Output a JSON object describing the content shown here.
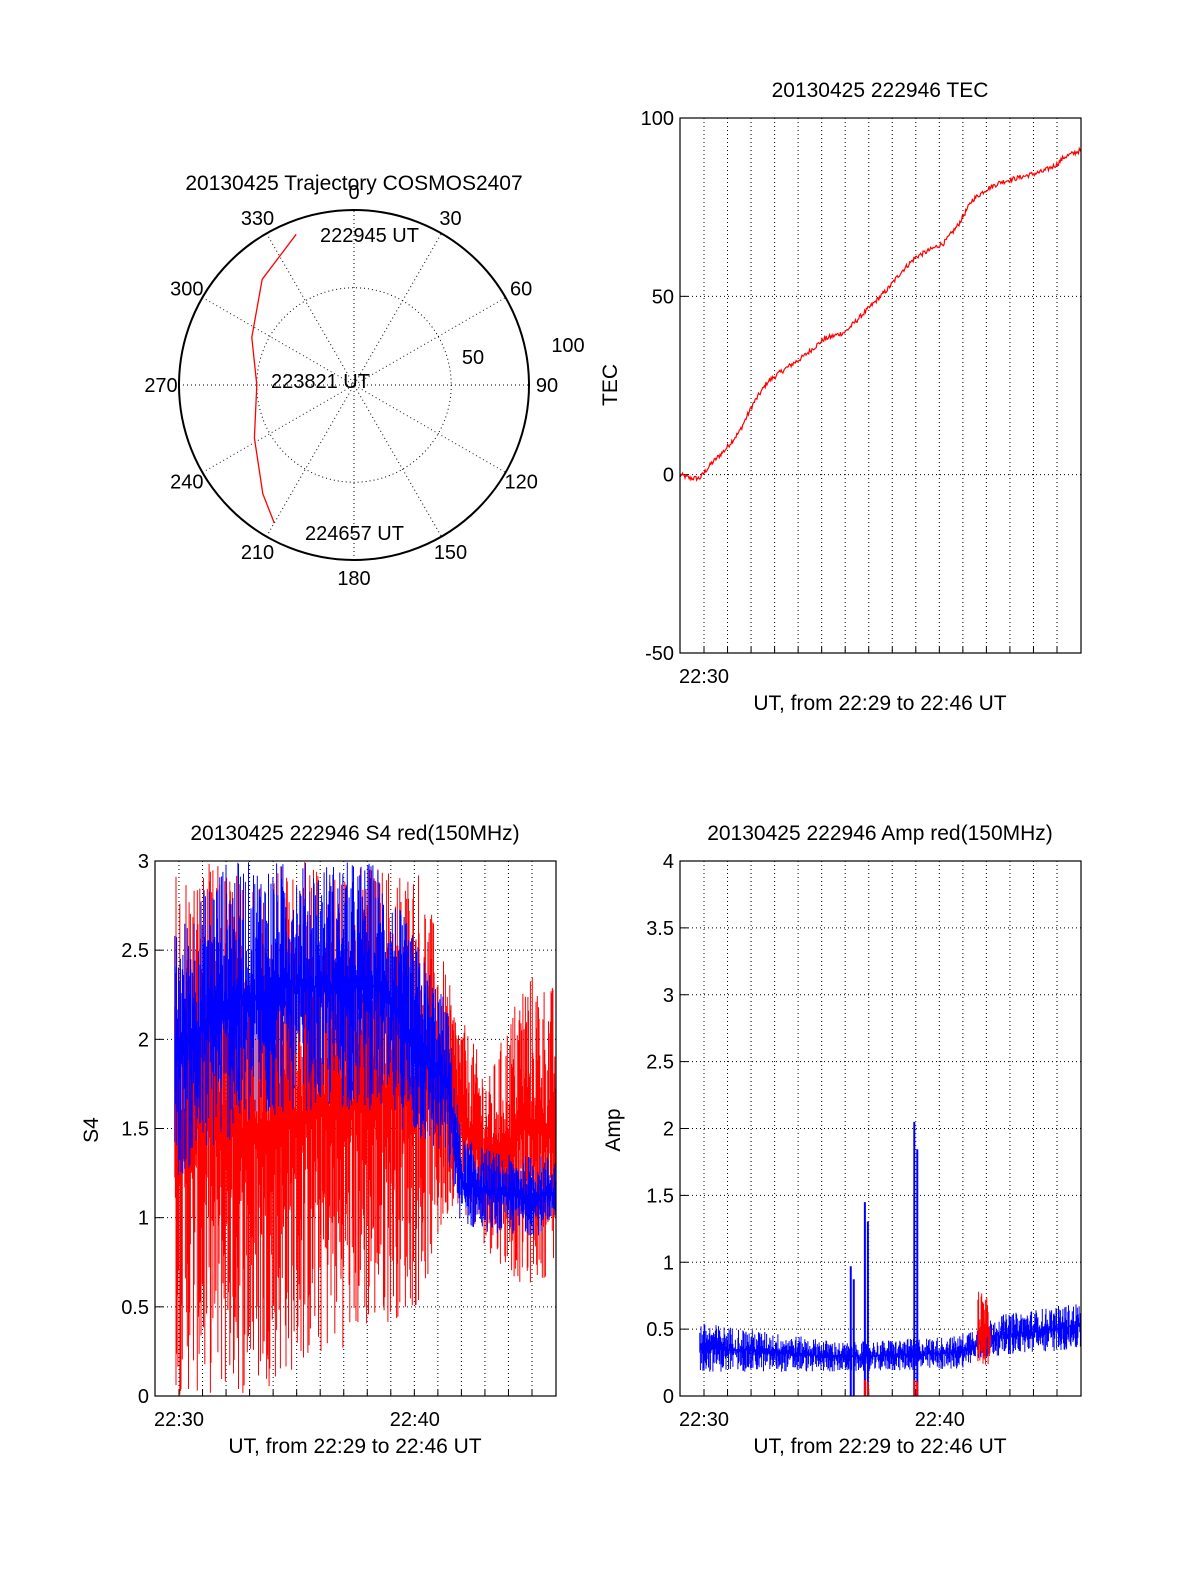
{
  "colors": {
    "red": "#ff0000",
    "blue": "#0000ff",
    "grid": "#000000",
    "background": "#ffffff"
  },
  "chart_data": [
    {
      "id": "trajectory",
      "type": "polar",
      "title": "20130425 Trajectory COSMOS2407",
      "angle_labels": [
        "0",
        "30",
        "60",
        "90",
        "120",
        "150",
        "180",
        "210",
        "240",
        "270",
        "300",
        "330"
      ],
      "radius_labels": [
        "50",
        "100"
      ],
      "grid": true,
      "track": {
        "color": "red",
        "points": [
          {
            "azimuth": 339,
            "zenith": 83
          },
          {
            "azimuth": 319,
            "zenith": 72
          },
          {
            "azimuth": 295,
            "zenith": 58
          },
          {
            "azimuth": 270,
            "zenith": 50
          },
          {
            "azimuth": 242,
            "zenith": 58
          },
          {
            "azimuth": 220,
            "zenith": 73
          },
          {
            "azimuth": 210,
            "zenith": 82
          }
        ],
        "labels": [
          {
            "text": "222945 UT",
            "azimuth": 339,
            "zenith": 83
          },
          {
            "text": "223821 UT",
            "azimuth": 270,
            "zenith": 50
          },
          {
            "text": "224657 UT",
            "azimuth": 210,
            "zenith": 82
          }
        ]
      }
    },
    {
      "id": "tec",
      "type": "line",
      "title": "20130425 222946 TEC",
      "xlabel": "UT, from 22:29 to 22:46 UT",
      "ylabel": "TEC",
      "xlim": [
        22.483,
        22.767
      ],
      "ylim": [
        -50,
        100
      ],
      "yticks": [
        "100",
        "50",
        "0",
        "-50"
      ],
      "xtick_labels": [
        {
          "t": 22.5,
          "label": "22:30"
        }
      ],
      "grid": true,
      "series": [
        {
          "color": "red",
          "x": [
            22.483,
            22.49,
            22.497,
            22.505,
            22.515,
            22.525,
            22.535,
            22.545,
            22.555,
            22.57,
            22.585,
            22.6,
            22.61,
            22.62,
            22.63,
            22.64,
            22.65,
            22.66,
            22.67,
            22.68,
            22.69,
            22.7,
            22.71,
            22.72,
            22.73,
            22.74,
            22.75,
            22.755,
            22.767
          ],
          "y": [
            0,
            -1,
            -1,
            3,
            7,
            12,
            20,
            26,
            29,
            33,
            38,
            40,
            44,
            48,
            52,
            57,
            61,
            63,
            65,
            70,
            77,
            80,
            82,
            83,
            84,
            85,
            87,
            89,
            91
          ]
        }
      ]
    },
    {
      "id": "s4",
      "type": "line",
      "title": "20130425 222946 S4 red(150MHz)",
      "xlabel": "UT, from 22:29 to 22:46 UT",
      "ylabel": "S4",
      "xlim": [
        22.483,
        22.767
      ],
      "ylim": [
        0,
        3
      ],
      "yticks": [
        "3",
        "2.5",
        "2",
        "1.5",
        "1",
        "0.5",
        "0"
      ],
      "xtick_labels": [
        {
          "t": 22.5,
          "label": "22:30"
        },
        {
          "t": 22.667,
          "label": "22:40"
        }
      ],
      "grid": true,
      "series": [
        {
          "color": "red",
          "profile": [
            {
              "t": 22.497,
              "lo": 0,
              "hi": 3
            },
            {
              "t": 22.55,
              "lo": 0,
              "hi": 3
            },
            {
              "t": 22.6,
              "lo": 0.2,
              "hi": 3
            },
            {
              "t": 22.67,
              "lo": 0.5,
              "hi": 3
            },
            {
              "t": 22.695,
              "lo": 1.1,
              "hi": 2.2
            },
            {
              "t": 22.72,
              "lo": 0.8,
              "hi": 1.8
            },
            {
              "t": 22.745,
              "lo": 0.6,
              "hi": 2.4
            },
            {
              "t": 22.767,
              "lo": 0.7,
              "hi": 2.3
            }
          ]
        },
        {
          "color": "blue",
          "profile": [
            {
              "t": 22.497,
              "lo": 1.2,
              "hi": 2.6
            },
            {
              "t": 22.53,
              "lo": 1.4,
              "hi": 3
            },
            {
              "t": 22.58,
              "lo": 1.6,
              "hi": 3
            },
            {
              "t": 22.64,
              "lo": 1.6,
              "hi": 3
            },
            {
              "t": 22.69,
              "lo": 1.3,
              "hi": 2.2
            },
            {
              "t": 22.7,
              "lo": 0.95,
              "hi": 1.45
            },
            {
              "t": 22.73,
              "lo": 0.9,
              "hi": 1.35
            },
            {
              "t": 22.767,
              "lo": 0.9,
              "hi": 1.35
            }
          ]
        }
      ]
    },
    {
      "id": "amp",
      "type": "line",
      "title": "20130425 222946 Amp red(150MHz)",
      "xlabel": "UT, from 22:29 to 22:46 UT",
      "ylabel": "Amp",
      "xlim": [
        22.483,
        22.767
      ],
      "ylim": [
        0,
        4
      ],
      "yticks": [
        "4",
        "3.5",
        "3",
        "2.5",
        "2",
        "1.5",
        "1",
        "0.5",
        "0"
      ],
      "xtick_labels": [
        {
          "t": 22.5,
          "label": "22:30"
        },
        {
          "t": 22.667,
          "label": "22:40"
        }
      ],
      "grid": true,
      "series": [
        {
          "color": "blue",
          "profile": [
            {
              "t": 22.497,
              "lo": 0.18,
              "hi": 0.55
            },
            {
              "t": 22.6,
              "lo": 0.18,
              "hi": 0.4
            },
            {
              "t": 22.68,
              "lo": 0.2,
              "hi": 0.45
            },
            {
              "t": 22.706,
              "lo": 0.3,
              "hi": 0.6
            },
            {
              "t": 22.767,
              "lo": 0.35,
              "hi": 0.7
            }
          ],
          "peaks": [
            {
              "t": 22.605,
              "v": 0.97
            },
            {
              "t": 22.615,
              "v": 1.45
            },
            {
              "t": 22.65,
              "v": 2.05
            }
          ]
        },
        {
          "color": "red",
          "profile": [
            {
              "t": 22.694,
              "lo": 0.2,
              "hi": 0.82
            },
            {
              "t": 22.703,
              "lo": 0.2,
              "hi": 0.7
            }
          ],
          "peaks": [
            {
              "t": 22.615,
              "v": 0.12
            },
            {
              "t": 22.65,
              "v": 0.12
            }
          ]
        }
      ]
    }
  ]
}
